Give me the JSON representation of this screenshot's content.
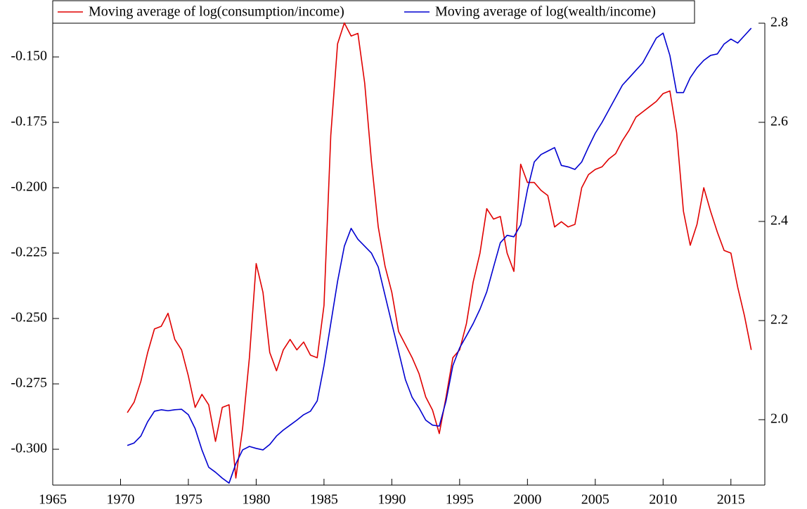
{
  "chart_data": {
    "type": "line",
    "x": [
      1970.5,
      1971,
      1971.5,
      1972,
      1972.5,
      1973,
      1973.5,
      1974,
      1974.5,
      1975,
      1975.5,
      1976,
      1976.5,
      1977,
      1977.5,
      1978,
      1978.5,
      1979,
      1979.5,
      1980,
      1980.5,
      1981,
      1981.5,
      1982,
      1982.5,
      1983,
      1983.5,
      1984,
      1984.5,
      1985,
      1985.5,
      1986,
      1986.5,
      1987,
      1987.5,
      1988,
      1988.5,
      1989,
      1989.5,
      1990,
      1990.5,
      1991,
      1991.5,
      1992,
      1992.5,
      1993,
      1993.5,
      1994,
      1994.5,
      1995,
      1995.5,
      1996,
      1996.5,
      1997,
      1997.5,
      1998,
      1998.5,
      1999,
      1999.5,
      2000,
      2000.5,
      2001,
      2001.5,
      2002,
      2002.5,
      2003,
      2003.5,
      2004,
      2004.5,
      2005,
      2005.5,
      2006,
      2006.5,
      2007,
      2007.5,
      2008,
      2008.5,
      2009,
      2009.5,
      2010,
      2010.5,
      2011,
      2011.5,
      2012,
      2012.5,
      2013,
      2013.5,
      2014,
      2014.5,
      2015,
      2015.5,
      2016,
      2016.5
    ],
    "series": [
      {
        "name": "Moving average of log(consumption/income)",
        "color": "#e00000",
        "values": [
          -0.286,
          -0.282,
          -0.274,
          -0.263,
          -0.254,
          -0.253,
          -0.248,
          -0.258,
          -0.262,
          -0.272,
          -0.284,
          -0.279,
          -0.283,
          -0.297,
          -0.284,
          -0.283,
          -0.311,
          -0.292,
          -0.265,
          -0.229,
          -0.24,
          -0.263,
          -0.27,
          -0.262,
          -0.258,
          -0.262,
          -0.259,
          -0.264,
          -0.265,
          -0.245,
          -0.18,
          -0.145,
          -0.137,
          -0.142,
          -0.141,
          -0.16,
          -0.19,
          -0.215,
          -0.23,
          -0.24,
          -0.255,
          -0.26,
          -0.265,
          -0.271,
          -0.28,
          -0.285,
          -0.294,
          -0.28,
          -0.265,
          -0.262,
          -0.252,
          -0.236,
          -0.225,
          -0.208,
          -0.212,
          -0.211,
          -0.225,
          -0.232,
          -0.191,
          -0.198,
          -0.198,
          -0.201,
          -0.203,
          -0.215,
          -0.213,
          -0.215,
          -0.214,
          -0.2,
          -0.195,
          -0.193,
          -0.192,
          -0.189,
          -0.187,
          -0.182,
          -0.178,
          -0.173,
          -0.171,
          -0.169,
          -0.167,
          -0.164,
          -0.163,
          -0.179,
          -0.209,
          -0.222,
          -0.214,
          -0.2,
          -0.209,
          -0.217,
          -0.224,
          -0.225,
          -0.238,
          -0.249,
          -0.262
        ]
      },
      {
        "name": "Moving average of log(wealth/income)",
        "color": "#0000d0",
        "axis": "y2",
        "values": [
          1.948,
          1.953,
          1.967,
          1.996,
          2.017,
          2.02,
          2.018,
          2.02,
          2.021,
          2.01,
          1.982,
          1.939,
          1.904,
          1.894,
          1.882,
          1.872,
          1.911,
          1.939,
          1.946,
          1.942,
          1.939,
          1.95,
          1.967,
          1.979,
          1.989,
          1.999,
          2.01,
          2.017,
          2.038,
          2.109,
          2.194,
          2.279,
          2.35,
          2.386,
          2.364,
          2.35,
          2.336,
          2.308,
          2.251,
          2.194,
          2.138,
          2.081,
          2.045,
          2.024,
          1.999,
          1.989,
          1.987,
          2.038,
          2.109,
          2.145,
          2.169,
          2.194,
          2.223,
          2.258,
          2.308,
          2.357,
          2.372,
          2.369,
          2.393,
          2.464,
          2.52,
          2.535,
          2.542,
          2.549,
          2.513,
          2.51,
          2.505,
          2.52,
          2.55,
          2.578,
          2.6,
          2.625,
          2.65,
          2.675,
          2.69,
          2.705,
          2.72,
          2.745,
          2.77,
          2.78,
          2.735,
          2.66,
          2.66,
          2.69,
          2.71,
          2.725,
          2.735,
          2.738,
          2.758,
          2.768,
          2.76,
          2.775,
          2.79
        ]
      }
    ],
    "xlim": [
      1965,
      2017.5
    ],
    "xticks": [
      1965,
      1970,
      1975,
      1980,
      1985,
      1990,
      1995,
      2000,
      2005,
      2010,
      2015
    ],
    "ylim": [
      -0.3137,
      -0.1371
    ],
    "yticks": [
      {
        "value": -0.15,
        "label": "-0.150"
      },
      {
        "value": -0.175,
        "label": "-0.175"
      },
      {
        "value": -0.2,
        "label": "-0.200"
      },
      {
        "value": -0.225,
        "label": "-0.225"
      },
      {
        "value": -0.25,
        "label": "-0.250"
      },
      {
        "value": -0.275,
        "label": "-0.275"
      },
      {
        "value": -0.3,
        "label": "-0.300"
      }
    ],
    "y2lim": [
      1.868,
      2.8
    ],
    "y2ticks": [
      2.8,
      2.6,
      2.4,
      2.2,
      {
        "value": 2,
        "label": "2.0"
      }
    ],
    "legend": "top"
  }
}
